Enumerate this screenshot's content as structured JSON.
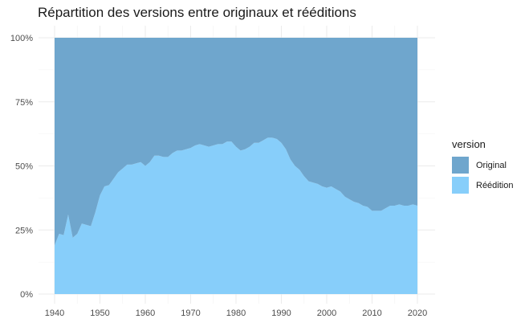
{
  "chart_data": {
    "type": "area",
    "stacked": true,
    "normalized": true,
    "title": "Répartition des versions entre originaux et rééditions",
    "xlabel": "",
    "ylabel": "",
    "xlim": [
      1940,
      2020
    ],
    "ylim": [
      0,
      1
    ],
    "x_ticks": [
      1940,
      1950,
      1960,
      1970,
      1980,
      1990,
      2000,
      2010,
      2020
    ],
    "y_ticks": [
      0,
      0.25,
      0.5,
      0.75,
      1
    ],
    "y_tick_labels": [
      "0%",
      "25%",
      "50%",
      "75%",
      "100%"
    ],
    "grid": true,
    "legend": {
      "title": "version",
      "position": "right"
    },
    "series_colors": {
      "Original": "#6fa6cd",
      "Réédition": "#87cefa"
    },
    "x": [
      1940,
      1941,
      1942,
      1943,
      1944,
      1945,
      1946,
      1947,
      1948,
      1949,
      1950,
      1951,
      1952,
      1953,
      1954,
      1955,
      1956,
      1957,
      1958,
      1959,
      1960,
      1961,
      1962,
      1963,
      1964,
      1965,
      1966,
      1967,
      1968,
      1969,
      1970,
      1971,
      1972,
      1973,
      1974,
      1975,
      1976,
      1977,
      1978,
      1979,
      1980,
      1981,
      1982,
      1983,
      1984,
      1985,
      1986,
      1987,
      1988,
      1989,
      1990,
      1991,
      1992,
      1993,
      1994,
      1995,
      1996,
      1997,
      1998,
      1999,
      2000,
      2001,
      2002,
      2003,
      2004,
      2005,
      2006,
      2007,
      2008,
      2009,
      2010,
      2011,
      2012,
      2013,
      2014,
      2015,
      2016,
      2017,
      2018,
      2019,
      2020
    ],
    "series": [
      {
        "name": "Réédition",
        "values": [
          0.19,
          0.235,
          0.23,
          0.31,
          0.22,
          0.235,
          0.275,
          0.27,
          0.265,
          0.32,
          0.385,
          0.42,
          0.425,
          0.45,
          0.475,
          0.49,
          0.505,
          0.505,
          0.51,
          0.515,
          0.5,
          0.515,
          0.54,
          0.54,
          0.535,
          0.535,
          0.55,
          0.56,
          0.56,
          0.565,
          0.57,
          0.58,
          0.585,
          0.58,
          0.575,
          0.58,
          0.585,
          0.585,
          0.595,
          0.595,
          0.575,
          0.56,
          0.565,
          0.575,
          0.59,
          0.59,
          0.6,
          0.61,
          0.61,
          0.605,
          0.59,
          0.565,
          0.525,
          0.5,
          0.485,
          0.46,
          0.44,
          0.435,
          0.43,
          0.42,
          0.415,
          0.42,
          0.41,
          0.4,
          0.38,
          0.37,
          0.36,
          0.355,
          0.345,
          0.34,
          0.325,
          0.325,
          0.325,
          0.335,
          0.345,
          0.345,
          0.35,
          0.345,
          0.345,
          0.35,
          0.345
        ]
      },
      {
        "name": "Original",
        "values": [
          0.81,
          0.765,
          0.77,
          0.69,
          0.78,
          0.765,
          0.725,
          0.73,
          0.735,
          0.68,
          0.615,
          0.58,
          0.575,
          0.55,
          0.525,
          0.51,
          0.495,
          0.495,
          0.49,
          0.485,
          0.5,
          0.485,
          0.46,
          0.46,
          0.465,
          0.465,
          0.45,
          0.44,
          0.44,
          0.435,
          0.43,
          0.42,
          0.415,
          0.42,
          0.425,
          0.42,
          0.415,
          0.415,
          0.405,
          0.405,
          0.425,
          0.44,
          0.435,
          0.425,
          0.41,
          0.41,
          0.4,
          0.39,
          0.39,
          0.395,
          0.41,
          0.435,
          0.475,
          0.5,
          0.515,
          0.54,
          0.56,
          0.565,
          0.57,
          0.58,
          0.585,
          0.58,
          0.59,
          0.6,
          0.62,
          0.63,
          0.64,
          0.645,
          0.655,
          0.66,
          0.675,
          0.675,
          0.675,
          0.665,
          0.655,
          0.655,
          0.65,
          0.655,
          0.655,
          0.65,
          0.655
        ]
      }
    ]
  }
}
